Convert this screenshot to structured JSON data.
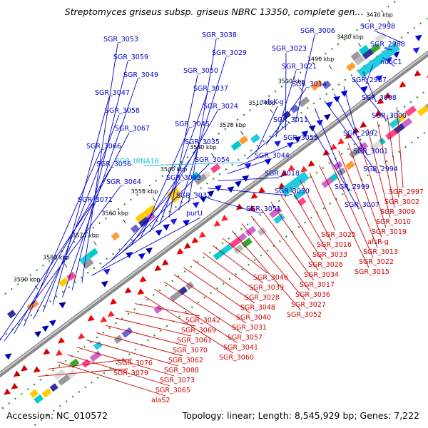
{
  "title": "Streptomyces griseus subsp. griseus NBRC 13350, complete gen...",
  "footer": {
    "accession": "Accession: NC_010572",
    "topology": "Topology: linear; Length: 8,545,929 bp; Genes: 7,222"
  },
  "colors": {
    "axis": "#8a8a8a",
    "forward_label": "#0000cc",
    "reverse_label": "#cc0000",
    "rna_label": "#22b8e0",
    "dotted_track": "#2a8a2a"
  },
  "kbp_ticks": [
    {
      "value": 3470,
      "label": "3470 kbp"
    },
    {
      "value": 3480,
      "label": "3480 kbp"
    },
    {
      "value": 3490,
      "label": "3490 kbp"
    },
    {
      "value": 3500,
      "label": "3500 kbp"
    },
    {
      "value": 3510,
      "label": "3510 kbp"
    },
    {
      "value": 3520,
      "label": "3520 kbp"
    },
    {
      "value": 3530,
      "label": "3530 kbp"
    },
    {
      "value": 3540,
      "label": "3540 kbp"
    },
    {
      "value": 3550,
      "label": "3550 kbp"
    },
    {
      "value": 3560,
      "label": "3560 kbp"
    },
    {
      "value": 3570,
      "label": "3570 kbp"
    },
    {
      "value": 3580,
      "label": "3580 kbp"
    },
    {
      "value": 3590,
      "label": "3590 kbp"
    }
  ],
  "forward_genes": [
    "SGR_2998",
    "SGR_2988",
    "nuoC1",
    "SGR_2987",
    "SGR_3008",
    "SGR_3000",
    "SGR_2992",
    "SGR_3001",
    "SGR_2994",
    "SGR_2999",
    "SGR_3007",
    "SGR_3006",
    "SGR_3023",
    "SGR_3021",
    "SGR_3014",
    "afsK-g",
    "SGR_3011",
    "SGR_3055",
    "SGR_3044",
    "SGR_3018",
    "SGR_3030",
    "SGR_3051",
    "SGR_3038",
    "SGR_3029",
    "SGR_3050",
    "SGR_3037",
    "SGR_3024",
    "SGR_3045",
    "SGR_3035",
    "SGR_3054",
    "SGR_3043",
    "SGR_3032",
    "purU",
    "SGR_3053",
    "SGR_3059",
    "SGR_3049",
    "SGR_3047",
    "SGR_3058",
    "SGR_3067",
    "SGR_3066",
    "SGR_3056",
    "SGR_3064",
    "SGR_3071"
  ],
  "rna_genes": [
    "SGR_tRNA18"
  ],
  "reverse_genes": [
    "SGR_2997",
    "SGR_3002",
    "SGR_3009",
    "SGR_3010",
    "SGR_3019",
    "afsR-g",
    "SGR_3013",
    "SGR_3022",
    "SGR_3015",
    "SGR_3025",
    "SGR_3016",
    "SGR_3033",
    "SGR_3026",
    "SGR_3034",
    "SGR_3017",
    "SGR_3036",
    "SGR_3027",
    "SGR_3052",
    "SGR_3046",
    "SGR_3039",
    "SGR_3028",
    "SGR_3048",
    "SGR_3040",
    "SGR_3031",
    "SGR_3057",
    "SGR_3041",
    "SGR_3060",
    "SGR_3042",
    "SGR_3069",
    "SGR_3061",
    "SGR_3070",
    "SGR_3062",
    "SGR_3088",
    "SGR_3073",
    "SGR_3065",
    "alaS2",
    "SGR_3076",
    "SGR_3079"
  ]
}
